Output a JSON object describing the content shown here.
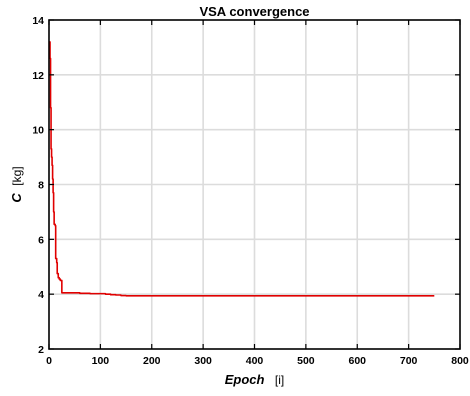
{
  "chart_data": {
    "type": "line",
    "title": "VSA convergence",
    "xlabel": {
      "main": "Epoch",
      "unit": "[i]"
    },
    "ylabel": {
      "main": "C",
      "unit": "[kg]"
    },
    "xlim": [
      0,
      800
    ],
    "ylim": [
      2,
      14
    ],
    "xticks": [
      0,
      100,
      200,
      300,
      400,
      500,
      600,
      700,
      800
    ],
    "yticks": [
      2,
      4,
      6,
      8,
      10,
      12,
      14
    ],
    "grid": true,
    "series": [
      {
        "color": "#e00000",
        "x": [
          1,
          2,
          3,
          4,
          5,
          6,
          7,
          8,
          9,
          10,
          11,
          12,
          13,
          14,
          15,
          16,
          17,
          18,
          19,
          20,
          22,
          25,
          28,
          30,
          40,
          60,
          80,
          100,
          110,
          120,
          130,
          140,
          150,
          200,
          300,
          400,
          500,
          600,
          700,
          750
        ],
        "y": [
          13.2,
          12.6,
          10.8,
          9.3,
          9.0,
          8.7,
          8.2,
          7.7,
          7.0,
          6.55,
          6.55,
          6.5,
          5.3,
          5.3,
          5.15,
          4.75,
          4.75,
          4.6,
          4.6,
          4.55,
          4.5,
          4.05,
          4.05,
          4.05,
          4.05,
          4.03,
          4.02,
          4.02,
          4.0,
          3.98,
          3.97,
          3.95,
          3.94,
          3.94,
          3.94,
          3.94,
          3.94,
          3.94,
          3.94,
          3.94
        ]
      }
    ]
  }
}
